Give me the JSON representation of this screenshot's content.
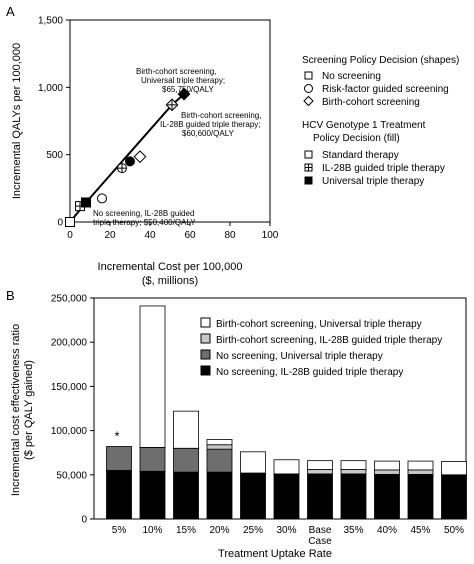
{
  "chart_data": [
    {
      "panel": "A",
      "type": "scatter",
      "xlabel": "Incremental Cost per 100,000",
      "xlabel2": "($, millions)",
      "ylabel": "Incremental QALYs per 100,000",
      "xlim": [
        0,
        100
      ],
      "ylim": [
        0,
        1500
      ],
      "xticks": [
        "0",
        "20",
        "40",
        "60",
        "80",
        "100"
      ],
      "yticks": [
        "0",
        "500",
        "1,000",
        "1,500"
      ],
      "xtick_values": [
        0,
        20,
        40,
        60,
        80,
        100
      ],
      "ytick_values": [
        0,
        500,
        1000,
        1500
      ],
      "points": [
        {
          "x": 0,
          "y": 0,
          "shape": "square",
          "fill": "standard"
        },
        {
          "x": 5,
          "y": 118,
          "shape": "square",
          "fill": "il28b"
        },
        {
          "x": 8,
          "y": 145,
          "shape": "square",
          "fill": "universal"
        },
        {
          "x": 16,
          "y": 175,
          "shape": "circle",
          "fill": "standard"
        },
        {
          "x": 26,
          "y": 400,
          "shape": "circle",
          "fill": "il28b"
        },
        {
          "x": 30,
          "y": 450,
          "shape": "circle",
          "fill": "universal"
        },
        {
          "x": 35,
          "y": 485,
          "shape": "diamond",
          "fill": "standard"
        },
        {
          "x": 51,
          "y": 870,
          "shape": "diamond",
          "fill": "il28b"
        },
        {
          "x": 57,
          "y": 950,
          "shape": "diamond",
          "fill": "universal"
        }
      ],
      "frontier": [
        [
          0,
          0
        ],
        [
          8,
          145
        ],
        [
          51,
          870
        ],
        [
          57,
          950
        ]
      ],
      "annotations": [
        {
          "lines": [
            "Birth-cohort screening,",
            "Universal triple therapy;",
            "$65,750/QALY"
          ]
        },
        {
          "lines": [
            "Birth-cohort screening,",
            "IL-28B guided triple therapy;",
            "$60,600/QALY"
          ]
        },
        {
          "lines": [
            "No screening, IL-28B guided",
            "triple therapy; $50,400/QALY"
          ]
        }
      ],
      "legend_shapes_title": "Screening Policy Decision (shapes)",
      "legend_shapes": [
        "No screening",
        "Risk-factor guided screening",
        "Birth-cohort screening"
      ],
      "legend_fill_title": [
        "HCV Genotype 1 Treatment",
        "Policy Decision (fill)"
      ],
      "legend_fill": [
        "Standard therapy",
        "IL-28B guided triple therapy",
        "Universal triple therapy"
      ]
    },
    {
      "panel": "B",
      "type": "bar",
      "stacked": true,
      "ylabel": "Incremental cost effectiveness ratio",
      "ylabel2": "($ per QALY gained)",
      "xlabel": "Treatment Uptake Rate",
      "ylim": [
        0,
        250000
      ],
      "yticks": [
        "0",
        "50,000",
        "100,000",
        "150,000",
        "200,000",
        "250,000"
      ],
      "ytick_values": [
        0,
        50000,
        100000,
        150000,
        200000,
        250000
      ],
      "categories": [
        "5%",
        "10%",
        "15%",
        "20%",
        "25%",
        "30%",
        "Base\nCase",
        "35%",
        "40%",
        "45%",
        "50%"
      ],
      "series": [
        {
          "name": "No screening, IL-28B guided triple therapy",
          "color": "#000000",
          "values": [
            55000,
            54000,
            53000,
            53000,
            52000,
            51000,
            51000,
            51000,
            50500,
            50500,
            50000
          ]
        },
        {
          "name": "No screening, Universal triple therapy",
          "color": "#6e6e6e",
          "values": [
            27000,
            27000,
            27000,
            26000,
            0,
            0,
            0,
            0,
            0,
            0,
            0
          ]
        },
        {
          "name": "Birth-cohort screening, IL-28B guided triple therapy",
          "color": "#c8c8c8",
          "values": [
            0,
            0,
            0,
            5000,
            0,
            0,
            5000,
            5000,
            5000,
            5000,
            0
          ]
        },
        {
          "name": "Birth-cohort screening, Universal triple therapy",
          "color": "#ffffff",
          "values": [
            0,
            160000,
            42000,
            6000,
            24000,
            16000,
            10000,
            10000,
            10000,
            10000,
            15000
          ]
        }
      ],
      "annotations": [
        {
          "category": "5%",
          "text": "*"
        }
      ]
    }
  ]
}
